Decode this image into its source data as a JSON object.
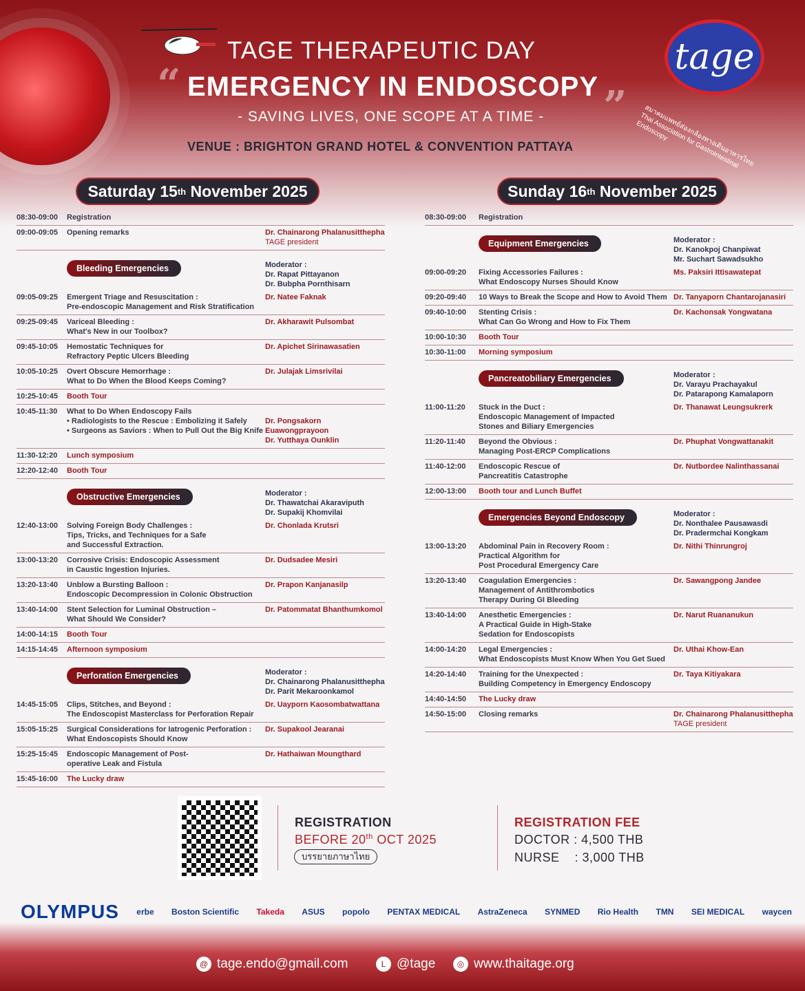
{
  "header": {
    "line1": "TAGE THERAPEUTIC DAY",
    "line2": "EMERGENCY IN ENDOSCOPY",
    "tagline": "- SAVING LIVES, ONE SCOPE AT A TIME -",
    "venue": "VENUE : BRIGHTON GRAND HOTEL & CONVENTION PATTAYA",
    "logo_text": "tage",
    "logo_thai": "สมาคมแพทย์ส่องกล้องทางเดินอาหารไทย",
    "logo_en": "Thai Association for Gastrointestinal Endoscopy"
  },
  "days": [
    {
      "weekday": "Saturday 15",
      "sup": "th",
      "rest": "November 2025",
      "items": [
        {
          "type": "row",
          "time": "08:30-09:00",
          "title": [
            "Registration"
          ]
        },
        {
          "type": "row",
          "time": "09:00-09:05",
          "title": [
            "Opening remarks"
          ],
          "speaker": "Dr. Chainarong Phalanusitthepha",
          "note": "TAGE president"
        },
        {
          "type": "session",
          "label": "Bleeding Emergencies",
          "mod_label": "Moderator :",
          "moderators": [
            "Dr. Rapat Pittayanon",
            "Dr. Bubpha Pornthisarn"
          ]
        },
        {
          "type": "row",
          "time": "09:05-09:25",
          "title": [
            "Emergent Triage and Resuscitation :",
            "Pre-endoscopic Management and Risk Stratification"
          ],
          "speaker": "Dr. Natee Faknak"
        },
        {
          "type": "row",
          "time": "09:25-09:45",
          "title": [
            "Variceal Bleeding :",
            "What's New in our Toolbox?"
          ],
          "speaker": "Dr. Akharawit Pulsombat"
        },
        {
          "type": "row",
          "time": "09:45-10:05",
          "title": [
            "Hemostatic Techniques for",
            "Refractory Peptic Ulcers Bleeding"
          ],
          "speaker": "Dr. Apichet Sirinawasatien"
        },
        {
          "type": "row",
          "time": "10:05-10:25",
          "title": [
            "Overt Obscure Hemorrhage :",
            "What to Do When the Blood Keeps Coming?"
          ],
          "speaker": "Dr. Julajak Limsrivilai"
        },
        {
          "type": "row",
          "hl": true,
          "time": "10:25-10:45",
          "title": [
            "Booth Tour"
          ]
        },
        {
          "type": "row",
          "time": "10:45-11:30",
          "title": [
            "What to Do When Endoscopy Fails",
            "• Radiologists to the Rescue : Embolizing it Safely",
            "• Surgeons as Saviors : When to Pull Out the Big Knife"
          ],
          "speakers": [
            "",
            "Dr. Pongsakorn Euawongprayoon",
            "Dr. Yutthaya Ounklin"
          ]
        },
        {
          "type": "row",
          "hl": true,
          "time": "11:30-12:20",
          "title": [
            "Lunch symposium"
          ]
        },
        {
          "type": "row",
          "hl": true,
          "time": "12:20-12:40",
          "title": [
            "Booth Tour"
          ]
        },
        {
          "type": "session",
          "label": "Obstructive Emergencies",
          "mod_label": "Moderator :",
          "moderators": [
            "Dr. Thawatchai Akaraviputh",
            "Dr. Supakij Khomvilai"
          ]
        },
        {
          "type": "row",
          "time": "12:40-13:00",
          "title": [
            "Solving Foreign Body Challenges :",
            "Tips, Tricks, and Techniques for a Safe",
            "and Successful Extraction."
          ],
          "speaker": "Dr. Chonlada Krutsri"
        },
        {
          "type": "row",
          "time": "13:00-13:20",
          "title": [
            "Corrosive Crisis: Endoscopic Assessment",
            "in Caustic Ingestion Injuries."
          ],
          "speaker": "Dr. Dudsadee Mesiri"
        },
        {
          "type": "row",
          "time": "13:20-13:40",
          "title": [
            "Unblow a Bursting Balloon :",
            "Endoscopic Decompression in Colonic Obstruction"
          ],
          "speaker": "Dr. Prapon Kanjanasilp"
        },
        {
          "type": "row",
          "time": "13:40-14:00",
          "title": [
            "Stent Selection for Luminal Obstruction –",
            "What Should We Consider?"
          ],
          "speaker": "Dr. Patommatat Bhanthumkomol"
        },
        {
          "type": "row",
          "hl": true,
          "time": "14:00-14:15",
          "title": [
            "Booth Tour"
          ]
        },
        {
          "type": "row",
          "hl": true,
          "time": "14:15-14:45",
          "title": [
            "Afternoon symposium"
          ]
        },
        {
          "type": "session",
          "label": "Perforation Emergencies",
          "mod_label": "Moderator :",
          "moderators": [
            "Dr. Chainarong Phalanusitthepha",
            "Dr. Parit Mekaroonkamol"
          ]
        },
        {
          "type": "row",
          "time": "14:45-15:05",
          "title": [
            "Clips, Stitches, and Beyond :",
            "The Endoscopist Masterclass for Perforation Repair"
          ],
          "speaker": "Dr. Uayporn Kaosombatwattana"
        },
        {
          "type": "row",
          "time": "15:05-15:25",
          "title": [
            "Surgical Considerations for Iatrogenic Perforation :",
            "What Endoscopists Should Know"
          ],
          "speaker": "Dr. Supakool Jearanai"
        },
        {
          "type": "row",
          "time": "15:25-15:45",
          "title": [
            "Endoscopic Management of Post-",
            "operative Leak and Fistula"
          ],
          "speaker": "Dr. Hathaiwan Moungthard"
        },
        {
          "type": "row",
          "hl": true,
          "time": "15:45-16:00",
          "title": [
            "The Lucky draw"
          ]
        }
      ]
    },
    {
      "weekday": "Sunday 16",
      "sup": "th",
      "rest": "November 2025",
      "items": [
        {
          "type": "row",
          "time": "08:30-09:00",
          "title": [
            "Registration"
          ]
        },
        {
          "type": "session",
          "label": "Equipment Emergencies",
          "mod_label": "Moderator :",
          "moderators": [
            "Dr. Kanokpoj Chanpiwat",
            "Mr. Suchart Sawadsukho"
          ]
        },
        {
          "type": "row",
          "time": "09:00-09:20",
          "title": [
            "Fixing Accessories Failures :",
            "What Endoscopy Nurses Should Know"
          ],
          "speaker": "Ms. Paksiri Ittisawatepat"
        },
        {
          "type": "row",
          "time": "09:20-09:40",
          "title": [
            "10 Ways to Break the Scope and How to Avoid Them"
          ],
          "speaker": "Dr. Tanyaporn Chantarojanasiri"
        },
        {
          "type": "row",
          "time": "09:40-10:00",
          "title": [
            "Stenting Crisis :",
            "What Can Go Wrong and How to Fix Them"
          ],
          "speaker": "Dr. Kachonsak Yongwatana"
        },
        {
          "type": "row",
          "hl": true,
          "time": "10:00-10:30",
          "title": [
            "Booth Tour"
          ]
        },
        {
          "type": "row",
          "hl": true,
          "time": "10:30-11:00",
          "title": [
            "Morning symposium"
          ]
        },
        {
          "type": "session",
          "label": "Pancreatobiliary Emergencies",
          "mod_label": "Moderator :",
          "moderators": [
            "Dr. Varayu Prachayakul",
            "Dr. Patarapong Kamalaporn"
          ]
        },
        {
          "type": "row",
          "time": "11:00-11:20",
          "title": [
            "Stuck in the Duct :",
            "Endoscopic Management of Impacted",
            "Stones and Biliary Emergencies"
          ],
          "speaker": "Dr. Thanawat Leungsukrerk"
        },
        {
          "type": "row",
          "time": "11:20-11:40",
          "title": [
            "Beyond the Obvious :",
            "Managing Post-ERCP Complications"
          ],
          "speaker": "Dr. Phuphat Vongwattanakit"
        },
        {
          "type": "row",
          "time": "11:40-12:00",
          "title": [
            "Endoscopic Rescue of",
            "Pancreatitis Catastrophe"
          ],
          "speaker": "Dr. Nutbordee Nalinthassanai"
        },
        {
          "type": "row",
          "hl": true,
          "time": "12:00-13:00",
          "title": [
            "Booth tour and Lunch Buffet"
          ]
        },
        {
          "type": "session",
          "label": "Emergencies Beyond Endoscopy",
          "mod_label": "Moderator :",
          "moderators": [
            "Dr. Nonthalee Pausawasdi",
            "Dr. Pradermchai Kongkam"
          ]
        },
        {
          "type": "row",
          "time": "13:00-13:20",
          "title": [
            "Abdominal Pain in Recovery Room :",
            "Practical Algorithm for",
            "Post Procedural Emergency Care"
          ],
          "speaker": "Dr. Nithi Thinrungroj"
        },
        {
          "type": "row",
          "time": "13:20-13:40",
          "title": [
            "Coagulation Emergencies :",
            "Management of Antithrombotics",
            "Therapy During GI Bleeding"
          ],
          "speaker": "Dr. Sawangpong Jandee"
        },
        {
          "type": "row",
          "time": "13:40-14:00",
          "title": [
            "Anesthetic Emergencies :",
            "A Practical Guide in High-Stake",
            "Sedation for Endoscopists"
          ],
          "speaker": "Dr. Narut Ruananukun"
        },
        {
          "type": "row",
          "time": "14:00-14:20",
          "title": [
            "Legal Emergencies :",
            "What Endoscopists Must Know When You Get Sued"
          ],
          "speaker": "Dr. Uthai Khow-Ean"
        },
        {
          "type": "row",
          "time": "14:20-14:40",
          "title": [
            "Training for the Unexpected :",
            "Building Competency in Emergency Endoscopy"
          ],
          "speaker": "Dr. Taya Kitiyakara"
        },
        {
          "type": "row",
          "hl": true,
          "time": "14:40-14:50",
          "title": [
            "The Lucky draw"
          ]
        },
        {
          "type": "row",
          "time": "14:50-15:00",
          "title": [
            "Closing remarks"
          ],
          "speaker": "Dr. Chainarong Phalanusitthepha",
          "note": "TAGE president"
        }
      ]
    }
  ],
  "registration": {
    "title": "REGISTRATION",
    "before": "BEFORE 20",
    "before_sup": "th",
    "before_rest": " OCT 2025",
    "thai_button": "บรรยายภาษาไทย"
  },
  "fee": {
    "title": "REGISTRATION FEE",
    "doctor": "DOCTOR : 4,500 THB",
    "nurse": "NURSE    : 3,000 THB"
  },
  "sponsors": [
    "OLYMPUS",
    "erbe",
    "Boston Scientific",
    "Takeda",
    "ASUS",
    "popolo",
    "PENTAX MEDICAL",
    "AstraZeneca",
    "SYNMED",
    "Rio Health",
    "TMN",
    "SEI MEDICAL",
    "waycen"
  ],
  "footer": {
    "email": "tage.endo@gmail.com",
    "line": "@tage",
    "web": "www.thaitage.org"
  },
  "colors": {
    "brand_red": "#9b1c22",
    "dark": "#2a2733"
  }
}
